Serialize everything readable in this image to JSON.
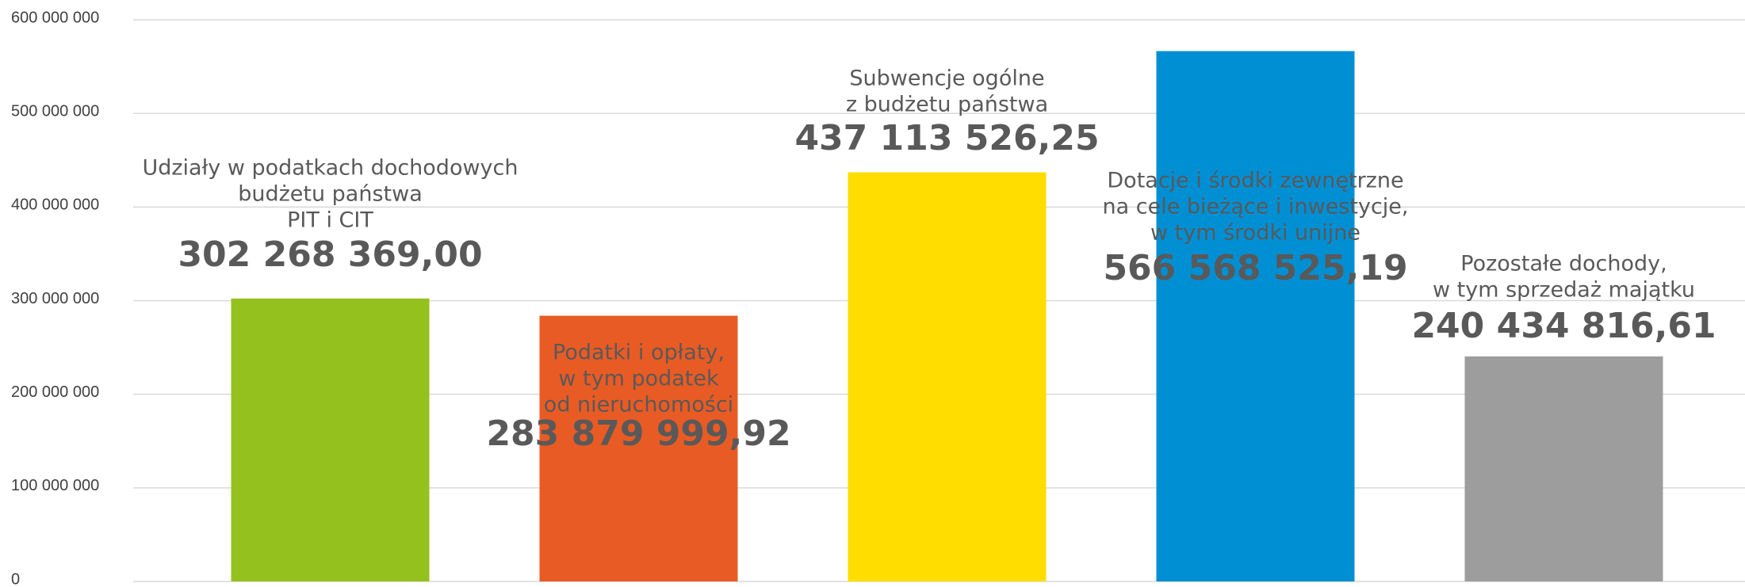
{
  "chart_data": {
    "type": "bar",
    "categories": [
      [
        "Udziały w podatkach dochodowych",
        "budżetu państwa",
        "PIT i CIT"
      ],
      [
        "Podatki i opłaty,",
        "w tym podatek",
        "od nieruchomości"
      ],
      [
        "Subwencje  ogólne",
        "z budżetu państwa"
      ],
      [
        "Dotacje i środki zewnętrzne",
        "na cele bieżące  i inwestycje,",
        "w tym środki unijne"
      ],
      [
        "Pozostałe dochody,",
        "w tym sprzedaż majątku"
      ]
    ],
    "values": [
      302268369.0,
      283879999.92,
      437113526.25,
      566568525.19,
      240434816.61
    ],
    "value_labels": [
      "302 268 369,00",
      "283 879 999,92",
      "437 113 526,25",
      "566 568 525,19",
      "240 434 816,61"
    ],
    "colors": [
      "#95c11f",
      "#e95b24",
      "#ffdd00",
      "#008fd3",
      "#9d9d9d"
    ],
    "ylim": [
      0,
      600000000
    ],
    "yticks": [
      0,
      {
        "value": 100000000,
        "label": "100 000 000"
      },
      {
        "value": 200000000,
        "label": "200 000 000"
      },
      {
        "value": 300000000,
        "label": "300 000 000"
      },
      {
        "value": 400000000,
        "label": "400 000 000"
      },
      {
        "value": 500000000,
        "label": "500 000 000"
      },
      {
        "value": 600000000,
        "label": "600 000 000"
      }
    ],
    "grid": true
  }
}
